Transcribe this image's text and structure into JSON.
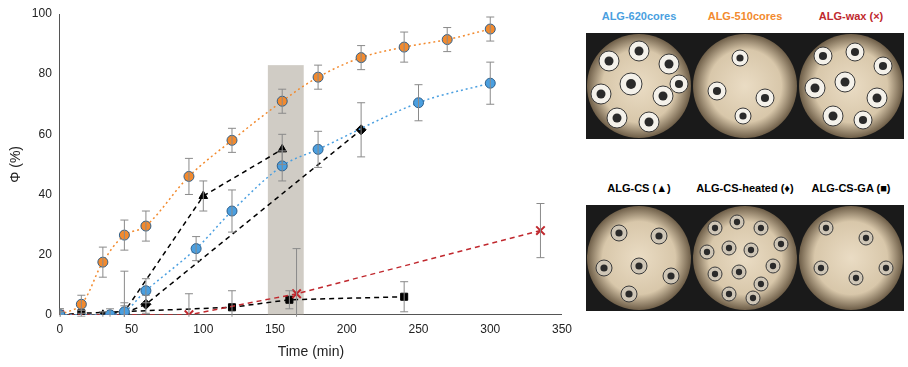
{
  "chart_data": {
    "type": "scatter",
    "x_label": "Time (min)",
    "y_label": "Φ (%)",
    "xlim": [
      0,
      350
    ],
    "xticks": [
      0,
      50,
      100,
      150,
      200,
      250,
      300,
      350
    ],
    "ylim": [
      0,
      100
    ],
    "yticks": [
      0,
      20,
      40,
      60,
      80,
      100
    ],
    "grid": false,
    "shaded_region": {
      "x": [
        145,
        170
      ],
      "y": [
        0,
        83
      ]
    },
    "series": [
      {
        "name": "ALG-620cores",
        "color": "#4a9fe0",
        "marker": "circle",
        "line_style": "dotted",
        "x": [
          0,
          35,
          45,
          60,
          95,
          120,
          155,
          180,
          250,
          300
        ],
        "values": [
          0,
          0,
          1,
          8,
          22,
          34.5,
          49.5,
          55,
          70.5,
          77
        ],
        "errors": [
          2,
          2,
          3,
          4,
          4,
          7,
          5,
          6,
          6,
          7
        ]
      },
      {
        "name": "ALG-510cores",
        "color": "#f28a2e",
        "marker": "circle",
        "line_style": "dotted",
        "x": [
          0,
          15,
          30,
          45,
          60,
          90,
          120,
          155,
          180,
          210,
          240,
          270,
          300
        ],
        "values": [
          0,
          3.5,
          17.5,
          26.5,
          29.5,
          46,
          58,
          71,
          79,
          85.5,
          89,
          91.5,
          95
        ],
        "errors": [
          2,
          3,
          5,
          5,
          5,
          6,
          4,
          4,
          4,
          4,
          5,
          4,
          4
        ]
      },
      {
        "name": "ALG-wax (×)",
        "color": "#c0282e",
        "marker": "x",
        "line_style": "dashed",
        "x": [
          0,
          90,
          165,
          335
        ],
        "values": [
          0,
          0,
          7,
          28
        ],
        "errors": [
          1,
          7,
          15,
          9
        ]
      },
      {
        "name": "ALG-CS (▲)",
        "color": "#000000",
        "marker": "triangle",
        "line_style": "dashed",
        "x": [
          30,
          45,
          100,
          155
        ],
        "values": [
          0,
          1,
          39.5,
          55
        ],
        "errors": [
          1,
          2,
          5,
          5
        ]
      },
      {
        "name": "ALG-CS-heated (♦)",
        "color": "#000000",
        "marker": "diamond",
        "line_style": "dashed",
        "x": [
          45,
          60,
          210
        ],
        "values": [
          0.5,
          3.5,
          61.5
        ],
        "errors": [
          14,
          3,
          9
        ]
      },
      {
        "name": "ALG-CS-GA (■)",
        "color": "#000000",
        "marker": "square",
        "line_style": "dashed",
        "x": [
          0,
          15,
          120,
          160,
          240
        ],
        "values": [
          0,
          0.5,
          2.5,
          5,
          6
        ],
        "errors": [
          1,
          1,
          5.5,
          3,
          5
        ]
      }
    ]
  }
}
